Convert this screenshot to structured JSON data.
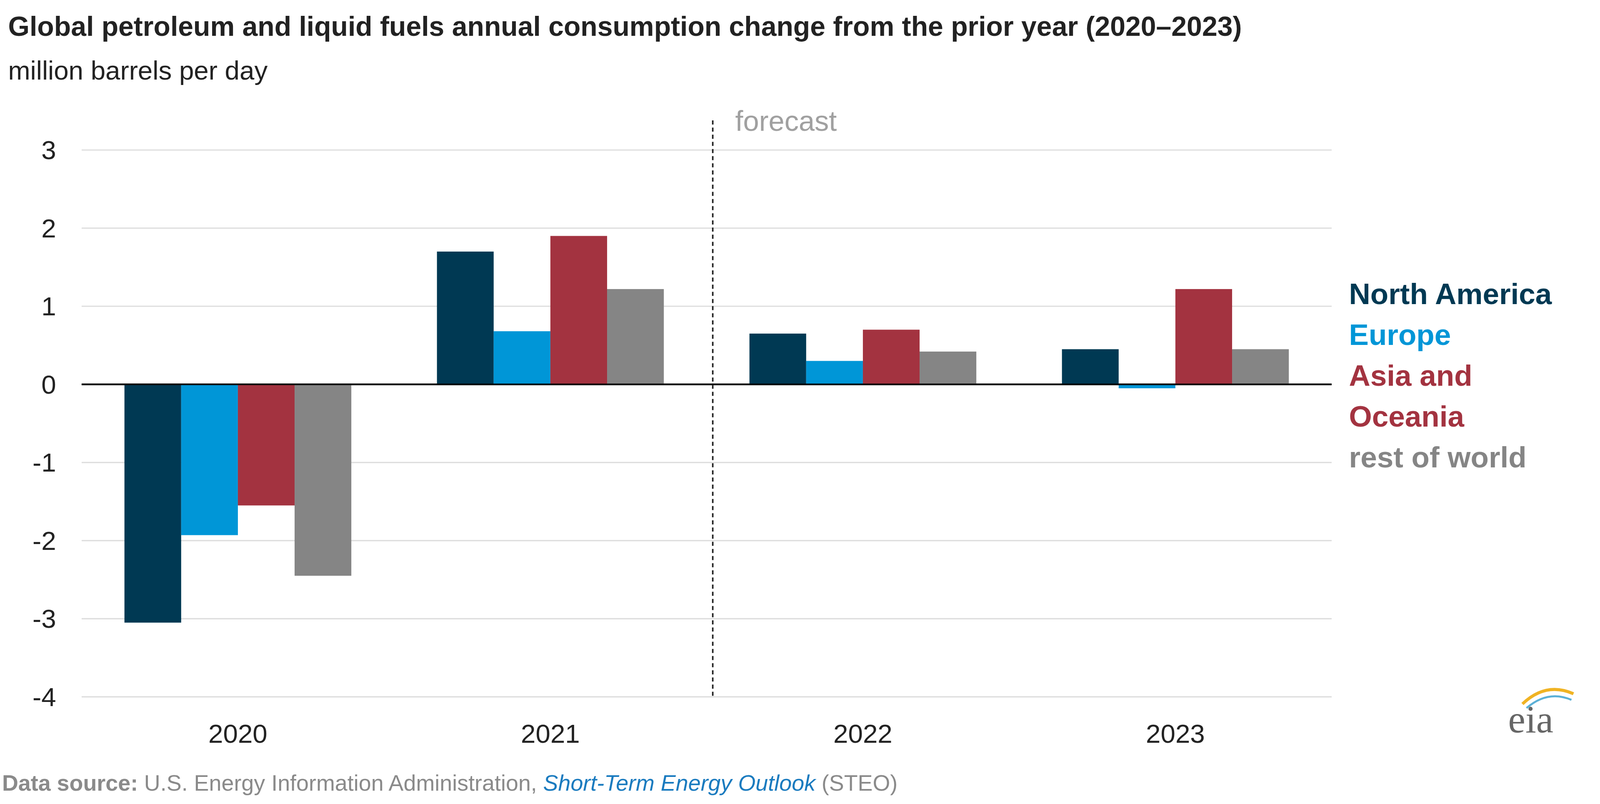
{
  "chart_data": {
    "type": "bar",
    "title": "Global petroleum and liquid fuels annual consumption change from the prior year (2020–2023)",
    "subtitle": "million barrels per day",
    "categories": [
      "2020",
      "2021",
      "2022",
      "2023"
    ],
    "series": [
      {
        "name": "North America",
        "color": "#003953",
        "values": [
          -3.05,
          1.7,
          0.65,
          0.45
        ]
      },
      {
        "name": "Europe",
        "color": "#0096d7",
        "values": [
          -1.93,
          0.68,
          0.3,
          -0.05
        ]
      },
      {
        "name": "Asia and Oceania",
        "color": "#a33340",
        "values": [
          -1.55,
          1.9,
          0.7,
          1.22
        ]
      },
      {
        "name": "rest of world",
        "color": "#858585",
        "values": [
          -2.45,
          1.22,
          0.42,
          0.45
        ]
      }
    ],
    "ylim": [
      -4,
      3
    ],
    "yticks": [
      -4,
      -3,
      -2,
      -1,
      0,
      1,
      2,
      3
    ],
    "grid": true,
    "legend": "right",
    "annotations": [
      {
        "text": "forecast",
        "x": "2022"
      }
    ],
    "source": {
      "label": "Data source:",
      "text": "U.S. Energy Information Administration,",
      "link": "Short-Term Energy Outlook",
      "suffix": "(STEO)"
    },
    "logo": "eia"
  }
}
